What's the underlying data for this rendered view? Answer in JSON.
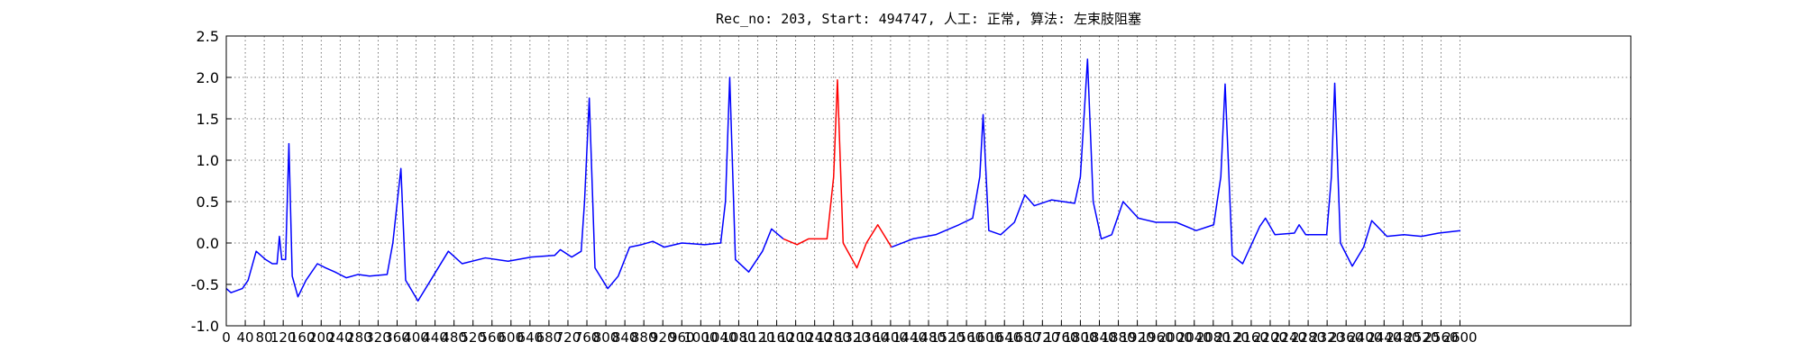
{
  "chart_data": {
    "type": "line",
    "title": "Rec_no: 203, Start: 494747, 人工: 正常, 算法: 左束肢阻塞",
    "xlim": [
      0,
      2960
    ],
    "xticks": [
      0,
      40,
      80,
      120,
      160,
      200,
      240,
      280,
      320,
      360,
      400,
      440,
      480,
      520,
      560,
      600,
      640,
      680,
      720,
      760,
      800,
      840,
      880,
      920,
      960,
      1000,
      1040,
      1080,
      1120,
      1160,
      1200,
      1240,
      1280,
      1320,
      1360,
      1400,
      1440,
      1480,
      1520,
      1560,
      1600,
      1640,
      1680,
      1720,
      1760,
      1800,
      1840,
      1880,
      1920,
      1960,
      2000,
      2040,
      2080,
      2120,
      2160,
      2200,
      2240,
      2280,
      2320,
      2360,
      2400,
      2440,
      2480,
      2520,
      2560,
      2600
    ],
    "ylim": [
      -1,
      2.5
    ],
    "yticks": [
      {
        "value": -1,
        "label": "-1.0"
      },
      -0.5,
      {
        "value": 0,
        "label": "0.0"
      },
      0.5,
      {
        "value": 1,
        "label": "1.0"
      },
      1.5,
      {
        "value": 2,
        "label": "2.0"
      },
      2.5
    ],
    "grid": true,
    "series": [
      {
        "color": "#0000ff",
        "x": [
          0,
          10,
          34,
          46,
          63,
          83,
          97,
          107,
          112,
          117,
          125,
          132,
          139,
          151,
          168,
          192,
          209,
          229,
          253,
          278,
          302,
          339,
          351,
          368,
          378,
          404,
          436,
          468,
          497,
          546,
          594,
          643,
          692,
          704,
          728,
          748,
          755,
          765,
          777,
          804,
          826,
          850,
          875,
          899,
          923,
          960,
          1008,
          1042,
          1052,
          1061,
          1073,
          1101,
          1130,
          1149,
          1174
        ],
        "values": [
          -0.55,
          -0.6,
          -0.55,
          -0.45,
          -0.1,
          -0.2,
          -0.25,
          -0.25,
          0.08,
          -0.2,
          -0.2,
          1.2,
          -0.4,
          -0.65,
          -0.45,
          -0.25,
          -0.3,
          -0.35,
          -0.42,
          -0.38,
          -0.4,
          -0.38,
          0.0,
          0.9,
          -0.45,
          -0.7,
          -0.4,
          -0.1,
          -0.25,
          -0.18,
          -0.22,
          -0.17,
          -0.15,
          -0.08,
          -0.17,
          -0.1,
          0.5,
          1.75,
          -0.3,
          -0.55,
          -0.4,
          -0.05,
          -0.02,
          0.02,
          -0.05,
          0.0,
          -0.02,
          0.0,
          0.5,
          2.0,
          -0.2,
          -0.35,
          -0.1,
          0.17,
          0.05
        ]
      },
      {
        "color": "#ff0000",
        "x": [
          1174,
          1203,
          1227,
          1266,
          1280,
          1288,
          1300,
          1329,
          1349,
          1373,
          1402
        ],
        "values": [
          0.05,
          -0.02,
          0.05,
          0.05,
          0.8,
          1.97,
          0.0,
          -0.3,
          0.0,
          0.22,
          -0.05
        ]
      },
      {
        "color": "#0000ff",
        "x": [
          1402,
          1447,
          1495,
          1544,
          1573,
          1588,
          1595,
          1607,
          1632,
          1661,
          1683,
          1703,
          1739,
          1788,
          1800,
          1815,
          1827,
          1844,
          1866,
          1890,
          1922,
          1959,
          2002,
          2044,
          2081,
          2096,
          2105,
          2120,
          2142,
          2178,
          2190,
          2210,
          2251,
          2261,
          2275,
          2319,
          2329,
          2336,
          2348,
          2373,
          2397,
          2414,
          2446,
          2482,
          2519,
          2555,
          2601
        ],
        "values": [
          -0.05,
          0.05,
          0.1,
          0.22,
          0.3,
          0.8,
          1.55,
          0.15,
          0.1,
          0.25,
          0.58,
          0.45,
          0.52,
          0.48,
          0.8,
          2.22,
          0.5,
          0.05,
          0.1,
          0.5,
          0.3,
          0.25,
          0.25,
          0.15,
          0.22,
          0.8,
          1.92,
          -0.15,
          -0.25,
          0.2,
          0.3,
          0.1,
          0.12,
          0.22,
          0.1,
          0.1,
          0.8,
          1.93,
          0.0,
          -0.28,
          -0.05,
          0.27,
          0.08,
          0.1,
          0.08,
          0.12,
          0.15
        ]
      }
    ]
  }
}
